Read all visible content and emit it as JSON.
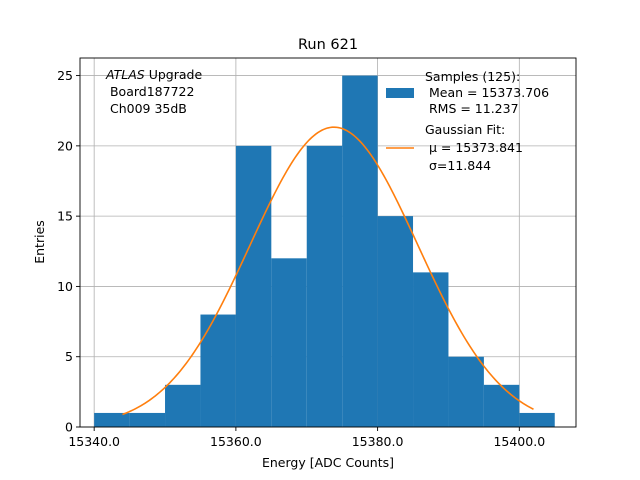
{
  "chart_data": {
    "type": "bar",
    "title": "Run 621",
    "xlabel": "Energy [ADC Counts]",
    "ylabel": "Entries",
    "xlim": [
      15338,
      15408
    ],
    "ylim": [
      0,
      26.25
    ],
    "x_ticks": [
      15340,
      15360,
      15380,
      15400
    ],
    "x_tick_labels": [
      "15340.0",
      "15360.0",
      "15380.0",
      "15400.0"
    ],
    "y_ticks": [
      0,
      5,
      10,
      15,
      20,
      25
    ],
    "y_tick_labels": [
      "0",
      "5",
      "10",
      "15",
      "20",
      "25"
    ],
    "grid": true,
    "legend_position": "top-right",
    "annotation": {
      "line1_italic": "ATLAS",
      "line1_rest": " Upgrade",
      "line2": " Board187722",
      "line3": " Ch009 35dB"
    },
    "histogram": {
      "name_lines": [
        "Samples (125):",
        " Mean = 15373.706",
        " RMS = 11.237"
      ],
      "color": "#1f77b4",
      "bin_edges": [
        15340,
        15345,
        15350,
        15355,
        15360,
        15365,
        15370,
        15375,
        15380,
        15385,
        15390,
        15395,
        15400,
        15405
      ],
      "counts": [
        1,
        1,
        3,
        8,
        20,
        12,
        20,
        25,
        15,
        11,
        5,
        3,
        1
      ]
    },
    "fit": {
      "name_lines": [
        "Gaussian Fit:",
        " μ = 15373.841",
        " σ=11.844"
      ],
      "color": "#ff7f0e",
      "mu": 15373.841,
      "sigma": 11.844,
      "peak": 21.33,
      "x_range": [
        15344,
        15402
      ]
    }
  }
}
